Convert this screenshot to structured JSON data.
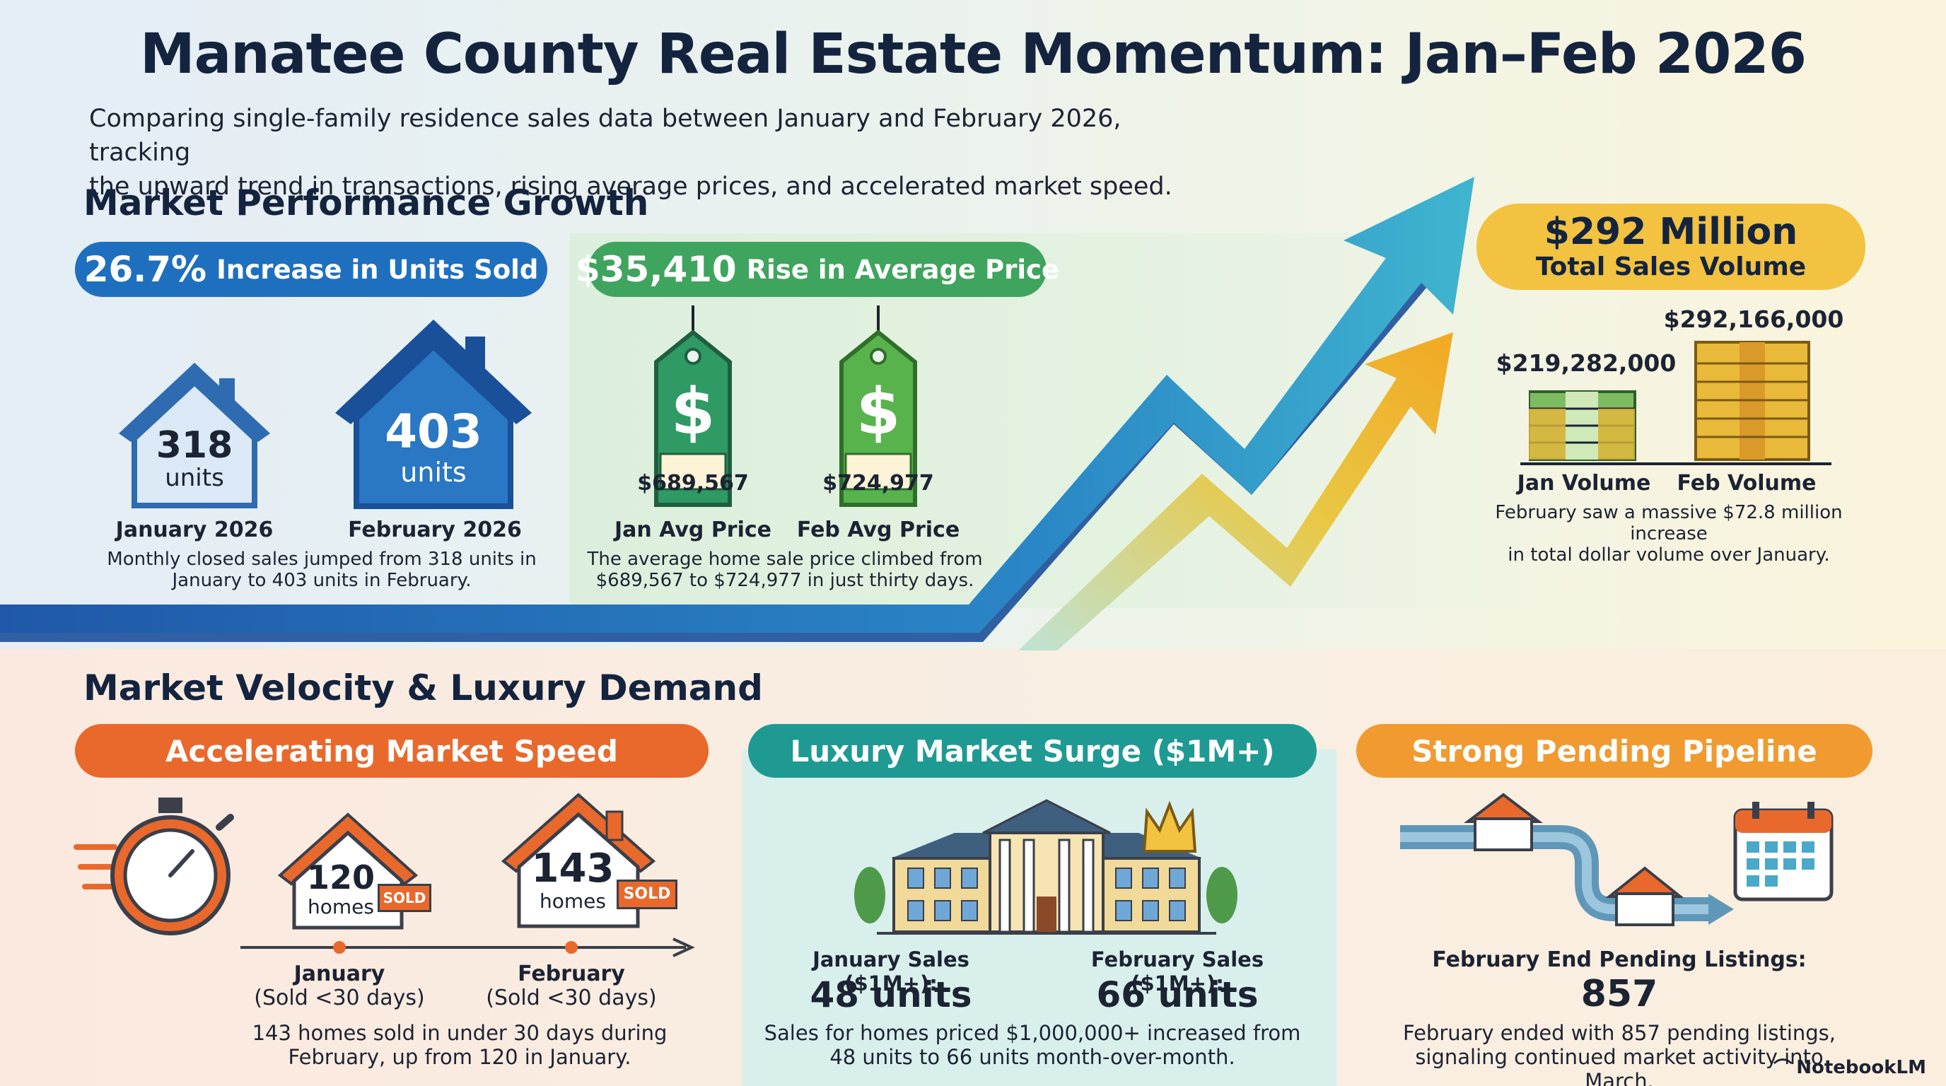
{
  "header": {
    "title": "Manatee County Real Estate Momentum: Jan–Feb 2026",
    "subtitle_line1": "Comparing single-family residence sales data between January and February 2026, tracking",
    "subtitle_line2": "the upward trend in transactions, rising average prices, and accelerated market speed."
  },
  "performance": {
    "heading": "Market Performance Growth",
    "units": {
      "pill_value": "26.7%",
      "pill_label": "Increase in Units Sold",
      "jan_number": "318",
      "jan_unit": "units",
      "jan_label": "January 2026",
      "feb_number": "403",
      "feb_unit": "units",
      "feb_label": "February 2026",
      "desc_line1": "Monthly closed sales jumped from 318 units in",
      "desc_line2": "January to 403 units in February."
    },
    "price": {
      "pill_value": "$35,410",
      "pill_label": "Rise in Average Price",
      "tag_symbol": "$",
      "jan_price": "$689,567",
      "jan_label": "Jan Avg Price",
      "feb_price": "$724,977",
      "feb_label": "Feb Avg Price",
      "desc_line1": "The average home sale price climbed from",
      "desc_line2": "$689,567 to $724,977 in just thirty days."
    },
    "volume": {
      "pill_value": "$292 Million",
      "pill_label": "Total Sales Volume",
      "jan_value": "$219,282,000",
      "feb_value": "$292,166,000",
      "jan_label": "Jan Volume",
      "feb_label": "Feb Volume",
      "desc_line1": "February saw a massive $72.8 million increase",
      "desc_line2": "in total dollar volume over January."
    }
  },
  "velocity": {
    "heading": "Market Velocity & Luxury Demand",
    "speed": {
      "pill_label": "Accelerating Market Speed",
      "jan_number": "120",
      "jan_unit": "homes",
      "feb_number": "143",
      "feb_unit": "homes",
      "sold_sign": "SOLD",
      "jan_label": "January",
      "jan_sub": "(Sold <30 days)",
      "feb_label": "February",
      "feb_sub": "(Sold <30 days)",
      "desc_line1": "143 homes sold in under 30 days during",
      "desc_line2": "February, up from 120 in January."
    },
    "luxury": {
      "pill_label": "Luxury Market Surge ($1M+)",
      "jan_label": "January Sales ($1M+):",
      "jan_value": "48 units",
      "feb_label": "February Sales ($1M+):",
      "feb_value": "66 units",
      "desc_line1": "Sales for homes priced $1,000,000+ increased from",
      "desc_line2": "48 units to 66 units month-over-month."
    },
    "pending": {
      "pill_label": "Strong Pending Pipeline",
      "label": "February End Pending Listings:",
      "value": "857",
      "desc_line1": "February ended with 857 pending listings,",
      "desc_line2": "signaling continued market activity into March."
    }
  },
  "footer": {
    "brand": "NotebookLM"
  },
  "colors": {
    "blue": "#1f6fbf",
    "green": "#3fa45e",
    "gold": "#f2c240",
    "orange": "#e9692c",
    "teal": "#1e9a93"
  }
}
